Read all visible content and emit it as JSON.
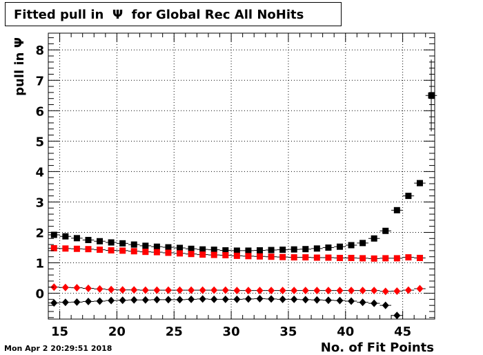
{
  "chart_data": {
    "type": "scatter",
    "title": "Fitted pull in  Ψ  for Global Rec All NoHits",
    "xlabel": "No. of Fit Points",
    "ylabel": "pull in  Ψ",
    "xlim": [
      14,
      47.8
    ],
    "ylim": [
      -0.85,
      8.55
    ],
    "x_ticks": [
      15,
      20,
      25,
      30,
      35,
      40,
      45
    ],
    "y_ticks": [
      0,
      1,
      2,
      3,
      4,
      5,
      6,
      7,
      8
    ],
    "grid": true,
    "series": [
      {
        "marker": "square",
        "color": "#000000",
        "x": [
          14.5,
          15.5,
          16.5,
          17.5,
          18.5,
          19.5,
          20.5,
          21.5,
          22.5,
          23.5,
          24.5,
          25.5,
          26.5,
          27.5,
          28.5,
          29.5,
          30.5,
          31.5,
          32.5,
          33.5,
          34.5,
          35.5,
          36.5,
          37.5,
          38.5,
          39.5,
          40.5,
          41.5,
          42.5,
          43.5,
          44.5,
          45.5,
          46.5,
          47.5
        ],
        "y": [
          1.92,
          1.87,
          1.81,
          1.75,
          1.71,
          1.67,
          1.64,
          1.6,
          1.56,
          1.53,
          1.51,
          1.49,
          1.46,
          1.44,
          1.43,
          1.41,
          1.4,
          1.4,
          1.41,
          1.42,
          1.43,
          1.44,
          1.45,
          1.47,
          1.5,
          1.53,
          1.58,
          1.65,
          1.8,
          2.05,
          2.73,
          3.2,
          3.62,
          6.5
        ],
        "yerr": [
          0.03,
          0.03,
          0.03,
          0.03,
          0.03,
          0.03,
          0.03,
          0.03,
          0.03,
          0.03,
          0.03,
          0.03,
          0.03,
          0.03,
          0.03,
          0.03,
          0.03,
          0.03,
          0.03,
          0.03,
          0.03,
          0.03,
          0.03,
          0.03,
          0.03,
          0.03,
          0.03,
          0.04,
          0.05,
          0.06,
          0.07,
          0.09,
          0.1,
          1.18
        ]
      },
      {
        "marker": "square",
        "color": "#ff0000",
        "x": [
          14.5,
          15.5,
          16.5,
          17.5,
          18.5,
          19.5,
          20.5,
          21.5,
          22.5,
          23.5,
          24.5,
          25.5,
          26.5,
          27.5,
          28.5,
          29.5,
          30.5,
          31.5,
          32.5,
          33.5,
          34.5,
          35.5,
          36.5,
          37.5,
          38.5,
          39.5,
          40.5,
          41.5,
          42.5,
          43.5,
          44.5,
          45.5,
          46.5
        ],
        "y": [
          1.48,
          1.47,
          1.46,
          1.45,
          1.43,
          1.41,
          1.4,
          1.38,
          1.36,
          1.35,
          1.33,
          1.31,
          1.29,
          1.27,
          1.26,
          1.25,
          1.23,
          1.22,
          1.21,
          1.2,
          1.19,
          1.18,
          1.18,
          1.17,
          1.17,
          1.16,
          1.16,
          1.15,
          1.14,
          1.15,
          1.15,
          1.18,
          1.16
        ],
        "yerr": [
          0.02,
          0.02,
          0.02,
          0.02,
          0.02,
          0.02,
          0.02,
          0.02,
          0.02,
          0.02,
          0.02,
          0.02,
          0.02,
          0.02,
          0.02,
          0.02,
          0.02,
          0.02,
          0.02,
          0.02,
          0.02,
          0.02,
          0.02,
          0.02,
          0.02,
          0.02,
          0.02,
          0.02,
          0.02,
          0.02,
          0.02,
          0.02,
          0.02
        ]
      },
      {
        "marker": "diamond",
        "color": "#ff0000",
        "x": [
          14.5,
          15.5,
          16.5,
          17.5,
          18.5,
          19.5,
          20.5,
          21.5,
          22.5,
          23.5,
          24.5,
          25.5,
          26.5,
          27.5,
          28.5,
          29.5,
          30.5,
          31.5,
          32.5,
          33.5,
          34.5,
          35.5,
          36.5,
          37.5,
          38.5,
          39.5,
          40.5,
          41.5,
          42.5,
          43.5,
          44.5,
          45.5,
          46.5
        ],
        "y": [
          0.2,
          0.19,
          0.18,
          0.16,
          0.14,
          0.12,
          0.11,
          0.11,
          0.1,
          0.1,
          0.1,
          0.1,
          0.1,
          0.1,
          0.1,
          0.1,
          0.09,
          0.09,
          0.09,
          0.09,
          0.09,
          0.09,
          0.09,
          0.09,
          0.09,
          0.09,
          0.09,
          0.09,
          0.09,
          0.06,
          0.07,
          0.1,
          0.15
        ],
        "yerr": [
          0.02,
          0.02,
          0.02,
          0.02,
          0.02,
          0.02,
          0.02,
          0.02,
          0.02,
          0.02,
          0.02,
          0.02,
          0.02,
          0.02,
          0.02,
          0.02,
          0.02,
          0.02,
          0.02,
          0.02,
          0.02,
          0.02,
          0.02,
          0.02,
          0.02,
          0.02,
          0.02,
          0.02,
          0.02,
          0.02,
          0.02,
          0.02,
          0.02
        ]
      },
      {
        "marker": "diamond",
        "color": "#000000",
        "x": [
          14.5,
          15.5,
          16.5,
          17.5,
          18.5,
          19.5,
          20.5,
          21.5,
          22.5,
          23.5,
          24.5,
          25.5,
          26.5,
          27.5,
          28.5,
          29.5,
          30.5,
          31.5,
          32.5,
          33.5,
          34.5,
          35.5,
          36.5,
          37.5,
          38.5,
          39.5,
          40.5,
          41.5,
          42.5,
          43.5,
          44.5
        ],
        "y": [
          -0.32,
          -0.3,
          -0.29,
          -0.27,
          -0.26,
          -0.24,
          -0.23,
          -0.22,
          -0.22,
          -0.21,
          -0.21,
          -0.21,
          -0.2,
          -0.19,
          -0.2,
          -0.2,
          -0.2,
          -0.19,
          -0.18,
          -0.19,
          -0.2,
          -0.2,
          -0.21,
          -0.22,
          -0.23,
          -0.24,
          -0.26,
          -0.3,
          -0.33,
          -0.4,
          -0.73
        ],
        "yerr": [
          0.02,
          0.02,
          0.02,
          0.02,
          0.02,
          0.02,
          0.02,
          0.02,
          0.02,
          0.02,
          0.02,
          0.02,
          0.02,
          0.02,
          0.02,
          0.02,
          0.02,
          0.02,
          0.02,
          0.02,
          0.02,
          0.02,
          0.02,
          0.02,
          0.02,
          0.02,
          0.02,
          0.02,
          0.02,
          0.03,
          0.03
        ]
      }
    ]
  },
  "datestamp": "Mon Apr  2 20:29:51 2018"
}
